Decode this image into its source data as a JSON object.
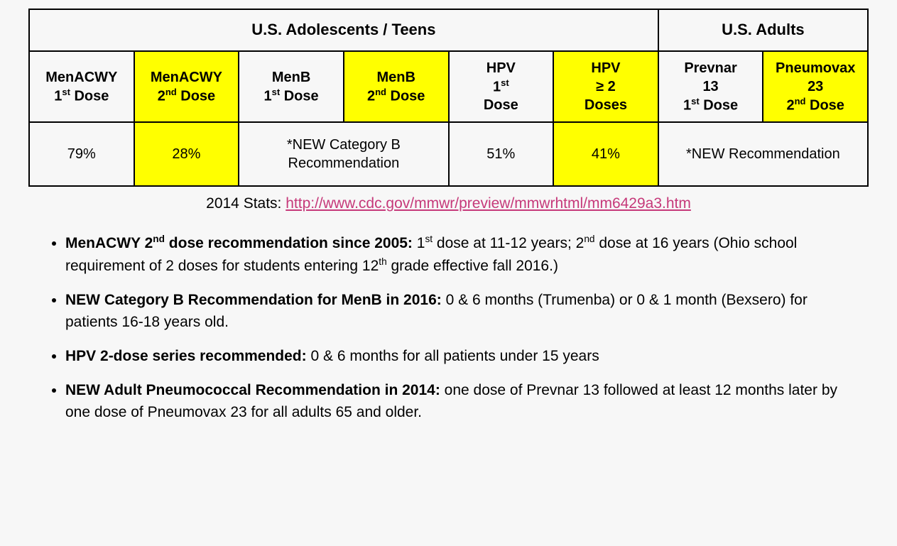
{
  "table": {
    "group_headers": [
      {
        "label": "U.S. Adolescents / Teens",
        "colspan": 6
      },
      {
        "label": "U.S. Adults",
        "colspan": 2
      }
    ],
    "columns": [
      {
        "line1": "MenACWY",
        "line2_pre": "1",
        "line2_sup": "st",
        "line2_post": " Dose",
        "highlight": false
      },
      {
        "line1": "MenACWY",
        "line2_pre": "2",
        "line2_sup": "nd",
        "line2_post": " Dose",
        "highlight": true
      },
      {
        "line1": "MenB",
        "line2_pre": "1",
        "line2_sup": "st",
        "line2_post": " Dose",
        "highlight": false
      },
      {
        "line1": "MenB",
        "line2_pre": "2",
        "line2_sup": "nd",
        "line2_post": " Dose",
        "highlight": true
      },
      {
        "line1": "HPV",
        "line2_pre": "1",
        "line2_sup": "st",
        "line2_post": "",
        "line3": "Dose",
        "highlight": false
      },
      {
        "line1": "HPV",
        "line2_pre": "≥ 2",
        "line2_sup": "",
        "line2_post": "",
        "line3": "Doses",
        "highlight": true
      },
      {
        "line1": "Prevnar",
        "mid": "13",
        "line2_pre": "1",
        "line2_sup": "st",
        "line2_post": " Dose",
        "highlight": false
      },
      {
        "line1": "Pneumovax",
        "mid": "23",
        "line2_pre": "2",
        "line2_sup": "nd",
        "line2_post": " Dose",
        "highlight": true
      }
    ],
    "data_row": [
      {
        "text": "79%",
        "highlight": false
      },
      {
        "text": "28%",
        "highlight": true
      },
      {
        "merged_text": "*NEW Category B Recommendation",
        "colspan": 2,
        "highlight": false
      },
      {
        "text": "51%",
        "highlight": false
      },
      {
        "text": "41%",
        "highlight": true
      },
      {
        "merged_text": "*NEW Recommendation",
        "colspan": 2,
        "highlight": false
      }
    ],
    "border_color": "#000000",
    "highlight_color": "#ffff00",
    "background_color": "#f7f7f7",
    "header_fontsize": 22,
    "cell_fontsize": 20
  },
  "stats": {
    "prefix": "2014 Stats: ",
    "link_text": "http://www.cdc.gov/mmwr/preview/mmwrhtml/mm6429a3.htm",
    "link_href": "http://www.cdc.gov/mmwr/preview/mmwrhtml/mm6429a3.htm",
    "link_color": "#c6397a"
  },
  "bullets": [
    {
      "lead_pre": "MenACWY 2",
      "lead_sup": "nd",
      "lead_post": " dose recommendation since 2005:",
      "body_html": " 1<sup>st</sup> dose at 11-12 years; 2<sup>nd</sup> dose at 16 years (Ohio school requirement of 2 doses for students entering 12<sup>th</sup> grade effective fall 2016.)"
    },
    {
      "lead_pre": "NEW Category B Recommendation for MenB in 2016:",
      "lead_sup": "",
      "lead_post": "",
      "body_html": " 0 & 6 months (Trumenba) or 0 & 1 month (Bexsero) for patients 16-18 years old."
    },
    {
      "lead_pre": "HPV 2-dose series recommended:",
      "lead_sup": "",
      "lead_post": "",
      "body_html": " 0 & 6 months for all patients under 15 years"
    },
    {
      "lead_pre": "NEW Adult Pneumococcal Recommendation in 2014:",
      "lead_sup": "",
      "lead_post": "",
      "body_html": " one dose of Prevnar 13 followed at least 12 months later by one dose of Pneumovax 23 for all adults 65 and older."
    }
  ]
}
